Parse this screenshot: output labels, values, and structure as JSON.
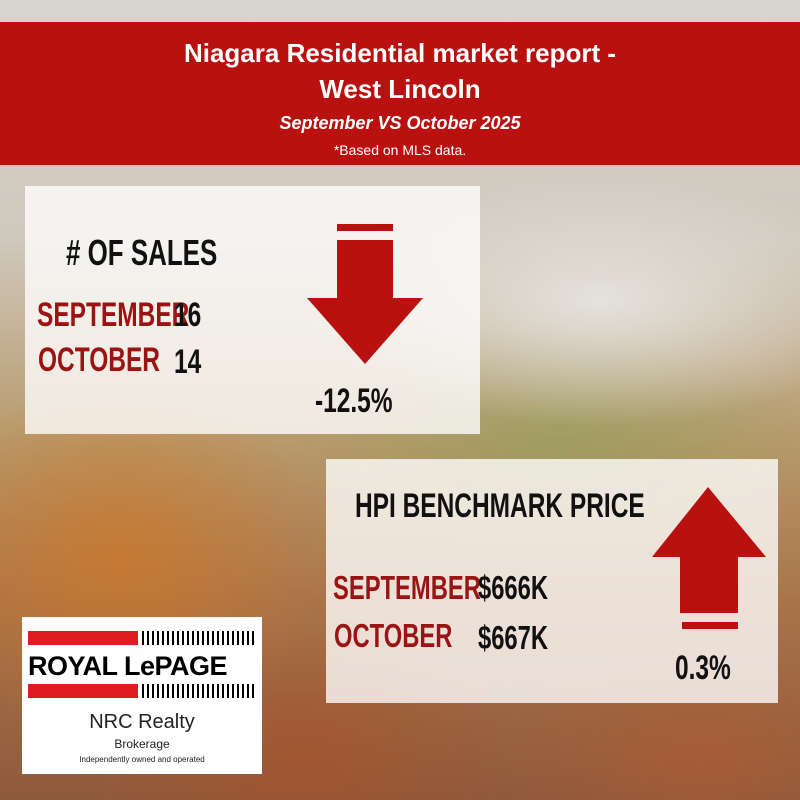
{
  "header": {
    "title_line1": "Niagara Residential market report -",
    "title_line2": "West Lincoln",
    "subtitle": "September VS October 2025",
    "note": "*Based on MLS data."
  },
  "sales": {
    "heading": "# OF SALES",
    "row1_label": "SEPTEMBER",
    "row1_value": "16",
    "row2_label": "OCTOBER",
    "row2_value": "14",
    "change": "-12.5%",
    "direction": "down"
  },
  "hpi": {
    "heading": "HPI BENCHMARK PRICE",
    "row1_label": "SEPTEMBER",
    "row1_value": "$666K",
    "row2_label": "OCTOBER",
    "row2_value": "$667K",
    "change": "0.3%",
    "direction": "up"
  },
  "logo": {
    "wordmark": "ROYAL LePAGE",
    "name": "NRC Realty",
    "brokerage": "Brokerage",
    "tagline": "Independently owned and operated"
  },
  "colors": {
    "brand_red": "#b91010",
    "label_red": "#9a1414"
  }
}
